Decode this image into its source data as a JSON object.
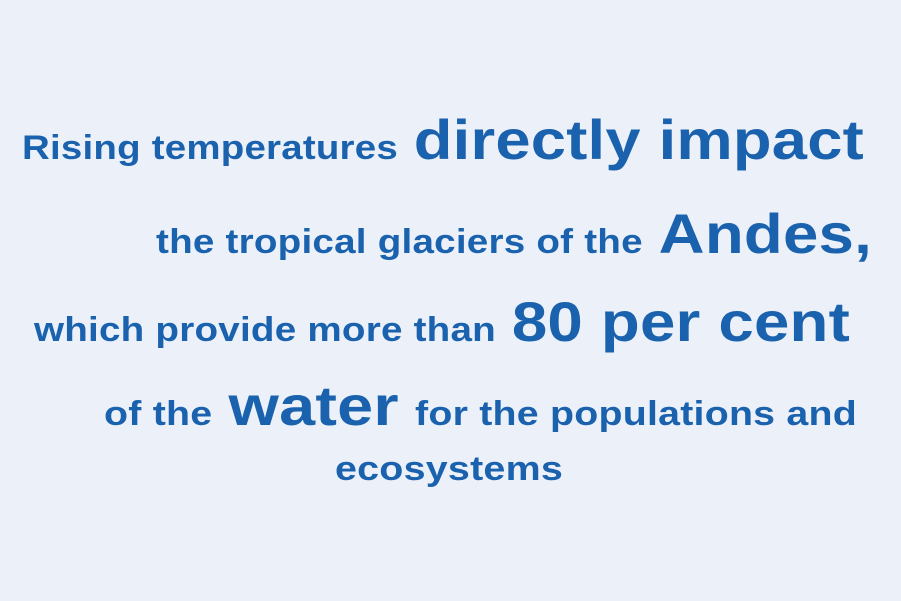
{
  "quote": {
    "color": "#1a62ad",
    "background": "#ecf1f9",
    "lines": [
      {
        "parts": [
          {
            "text": "Rising temperatures",
            "emphasis": false
          },
          {
            "text": "directly impact",
            "emphasis": true
          }
        ]
      },
      {
        "parts": [
          {
            "text": "the tropical glaciers of the",
            "emphasis": false
          },
          {
            "text": "Andes,",
            "emphasis": true
          }
        ]
      },
      {
        "parts": [
          {
            "text": "which provide more than",
            "emphasis": false
          },
          {
            "text": "80 per cent",
            "emphasis": true
          }
        ]
      },
      {
        "parts": [
          {
            "text": "of the",
            "emphasis": false
          },
          {
            "text": "water",
            "emphasis": true
          },
          {
            "text": "for the populations and",
            "emphasis": false
          }
        ]
      },
      {
        "parts": [
          {
            "text": "ecosystems",
            "emphasis": false
          }
        ]
      }
    ]
  }
}
